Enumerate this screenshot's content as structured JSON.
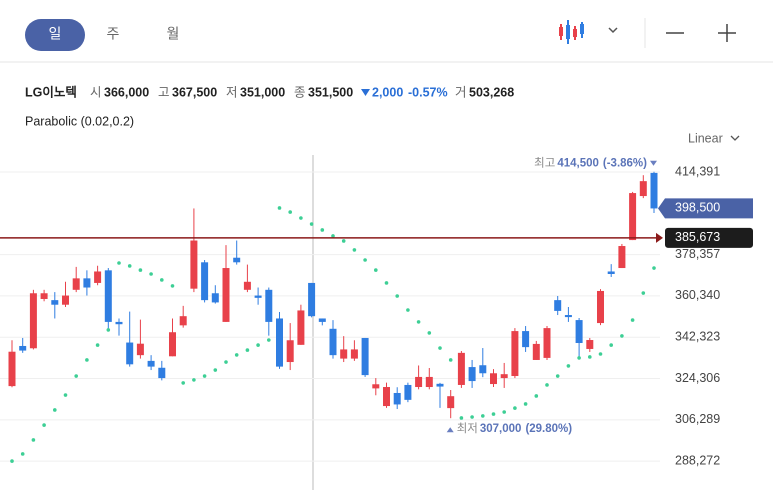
{
  "header": {
    "tabs": [
      "일",
      "주",
      "월"
    ],
    "scale": "Linear"
  },
  "quote": {
    "name": "LG이노텍",
    "open_label": "시",
    "open": "366,000",
    "high_label": "고",
    "high": "367,500",
    "low_label": "저",
    "low": "351,000",
    "close_label": "종",
    "close": "351,500",
    "change": "2,000",
    "change_pct": "-0.57%",
    "volume_label": "거",
    "volume": "503,268"
  },
  "indicator": "Parabolic (0.02,0.2)",
  "chart_data": {
    "type": "candlestick",
    "up_color": "#e8414a",
    "down_color": "#2f7de1",
    "sar_color": "#3dcf95",
    "grid": true,
    "ylim": [
      275680,
      423987
    ],
    "yticks": [
      {
        "value": 414391,
        "label": "414,391"
      },
      {
        "value": 378357,
        "label": "378,357"
      },
      {
        "value": 360340,
        "label": "360,340"
      },
      {
        "value": 342323,
        "label": "342,323"
      },
      {
        "value": 324306,
        "label": "324,306"
      },
      {
        "value": 306289,
        "label": "306,289"
      },
      {
        "value": 288272,
        "label": "288,272"
      }
    ],
    "open": [
      321000,
      338500,
      337500,
      359000,
      358500,
      356500,
      363000,
      368000,
      366000,
      371500,
      349000,
      340000,
      334500,
      332000,
      329000,
      334000,
      347500,
      363500,
      375000,
      361500,
      349000,
      377000,
      363000,
      360500,
      363000,
      350500,
      331500,
      339000,
      366000,
      350500,
      346000,
      333000,
      333000,
      342000,
      320000,
      312300,
      318000,
      321500,
      320600,
      320600,
      322000,
      311400,
      321500,
      329300,
      330100,
      321900,
      324500,
      325400,
      345000,
      332400,
      333300,
      358500,
      352000,
      349800,
      337200,
      348500,
      371000,
      372500,
      384700,
      403900,
      414000
    ],
    "high": [
      341000,
      342000,
      363000,
      363000,
      362000,
      366500,
      373000,
      371500,
      373500,
      372500,
      350500,
      353500,
      350000,
      334500,
      332000,
      350500,
      356000,
      398500,
      376000,
      365000,
      382500,
      384500,
      374000,
      364000,
      364000,
      353300,
      348500,
      356500,
      366000,
      350500,
      349800,
      342800,
      341000,
      342000,
      324500,
      322500,
      320500,
      322500,
      330000,
      328900,
      322400,
      319300,
      336300,
      332400,
      337600,
      328400,
      331100,
      346300,
      347200,
      340700,
      347200,
      360300,
      355500,
      350700,
      342000,
      363300,
      374200,
      383000,
      405700,
      413000,
      414500
    ],
    "low": [
      320500,
      335500,
      337000,
      358000,
      350500,
      355500,
      362000,
      360500,
      365000,
      345500,
      343000,
      329500,
      333000,
      328000,
      323500,
      334000,
      346500,
      362000,
      357500,
      357000,
      349000,
      374000,
      362000,
      356500,
      343000,
      328500,
      328000,
      339000,
      351000,
      347500,
      333000,
      331500,
      332000,
      325000,
      317000,
      311500,
      311000,
      314000,
      319600,
      319600,
      311500,
      307000,
      320200,
      320200,
      324900,
      320600,
      320200,
      324500,
      335900,
      332400,
      332400,
      352000,
      349000,
      333300,
      335900,
      347600,
      368600,
      372500,
      384700,
      403000,
      396500
    ],
    "close": [
      336000,
      336500,
      361500,
      361500,
      356500,
      360500,
      368000,
      364000,
      371000,
      349000,
      348000,
      330500,
      339500,
      329500,
      324500,
      344500,
      351500,
      384500,
      358500,
      357500,
      372500,
      375000,
      366500,
      359500,
      349000,
      329500,
      341000,
      354000,
      351500,
      349000,
      334500,
      337000,
      337000,
      325800,
      321800,
      320600,
      313000,
      315000,
      325000,
      325000,
      320800,
      316600,
      335500,
      323200,
      326600,
      326600,
      326200,
      345000,
      338000,
      339400,
      346300,
      353800,
      351100,
      339800,
      341100,
      362500,
      369900,
      382100,
      405200,
      410400,
      398500
    ],
    "sar": [
      288300,
      291400,
      297500,
      304000,
      310600,
      317100,
      325400,
      332400,
      338900,
      345500,
      374700,
      373400,
      371600,
      369900,
      367300,
      364700,
      322400,
      323700,
      325400,
      328000,
      331500,
      334600,
      336700,
      338900,
      341100,
      398700,
      396900,
      394300,
      391700,
      389100,
      386500,
      384300,
      380400,
      376000,
      371600,
      366000,
      360300,
      354200,
      349000,
      344200,
      337600,
      332400,
      307100,
      307500,
      308000,
      308800,
      309700,
      311400,
      313200,
      316700,
      321500,
      325400,
      329800,
      333300,
      333700,
      335000,
      338900,
      342900,
      349800,
      361600,
      372500
    ],
    "price_line": {
      "value": 385673,
      "label": "385,673"
    },
    "last": {
      "value": 398500,
      "label": "398,500"
    },
    "high_note": {
      "prefix": "최고",
      "value": 414500,
      "label": "414,500",
      "change": "(-3.86%)"
    },
    "low_note": {
      "prefix": "최저",
      "value": 307000,
      "label": "307,000",
      "change": "(29.80%)"
    }
  }
}
